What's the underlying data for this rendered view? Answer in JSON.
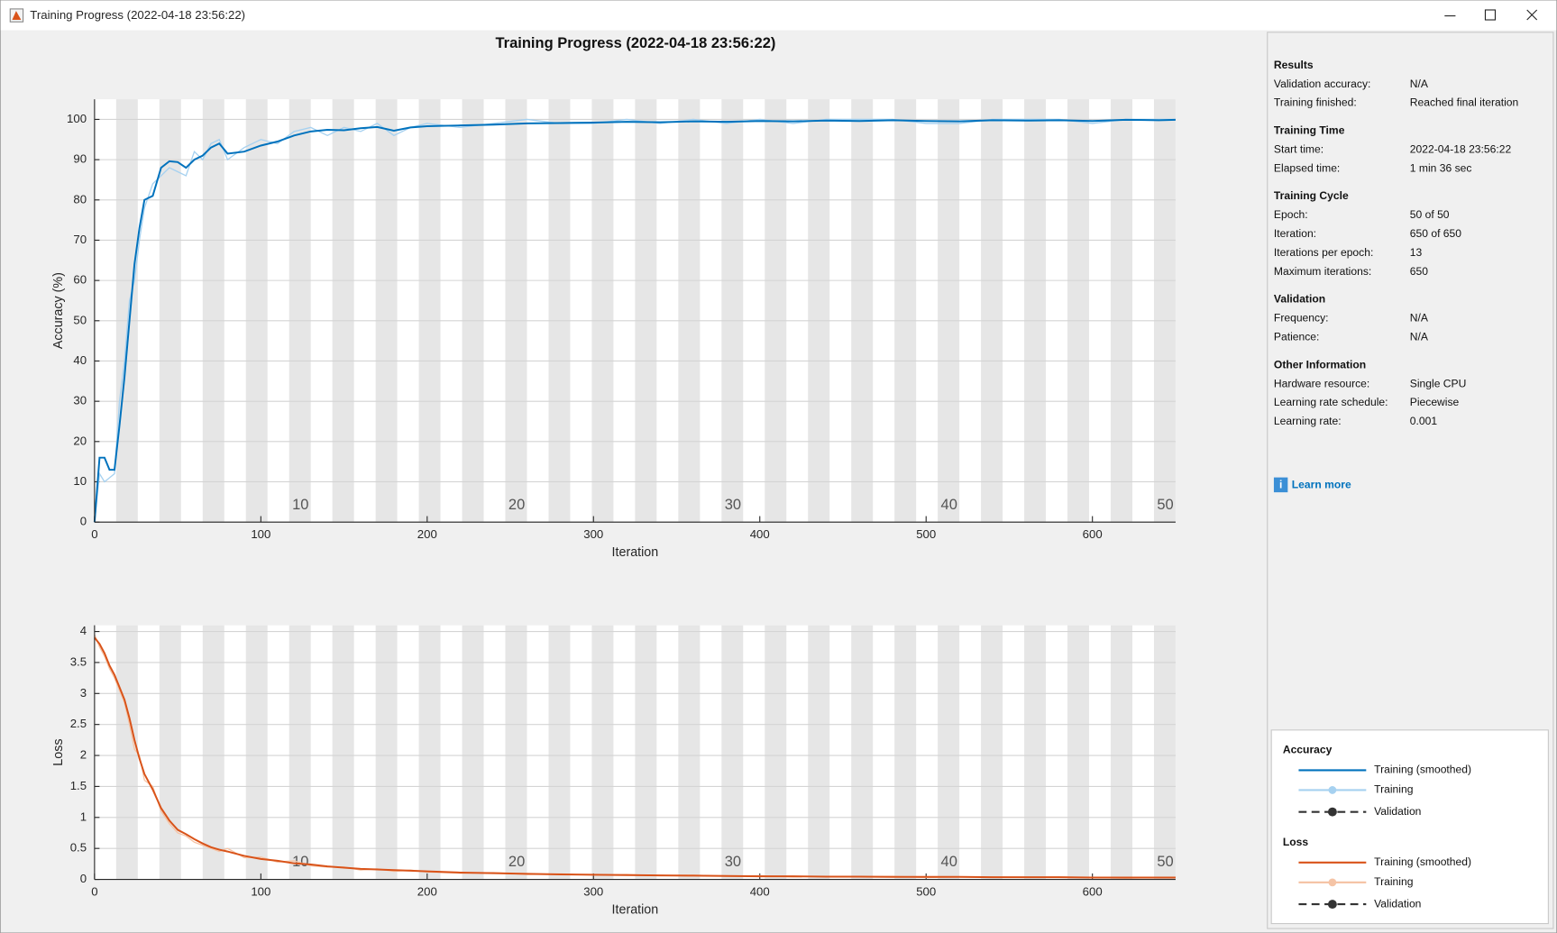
{
  "window": {
    "title": "Training Progress (2022-04-18 23:56:22)"
  },
  "figure_title": "Training Progress (2022-04-18 23:56:22)",
  "chart_data": [
    {
      "type": "line",
      "y_label": "Accuracy (%)",
      "x_label": "Iteration",
      "x": [
        0,
        3,
        6,
        9,
        12,
        15,
        18,
        21,
        24,
        27,
        30,
        35,
        40,
        45,
        50,
        55,
        60,
        65,
        70,
        75,
        80,
        90,
        100,
        110,
        120,
        130,
        140,
        150,
        160,
        170,
        180,
        190,
        200,
        220,
        240,
        260,
        280,
        300,
        320,
        340,
        360,
        380,
        400,
        420,
        440,
        460,
        480,
        500,
        520,
        540,
        560,
        580,
        600,
        620,
        640,
        650
      ],
      "xlim": [
        0,
        650
      ],
      "xticks": [
        0,
        100,
        200,
        300,
        400,
        500,
        600
      ],
      "ylim": [
        0,
        105
      ],
      "yticks": [
        0,
        10,
        20,
        30,
        40,
        50,
        60,
        70,
        80,
        90,
        100
      ],
      "grid": true,
      "epoch_ticks": [
        {
          "value": 130,
          "label": "10"
        },
        {
          "value": 260,
          "label": "20"
        },
        {
          "value": 390,
          "label": "30"
        },
        {
          "value": 520,
          "label": "40"
        },
        {
          "value": 650,
          "label": "50"
        }
      ],
      "series": [
        {
          "name": "Training (smoothed)",
          "color": "#0072bd",
          "values": [
            0,
            16,
            16,
            13,
            13,
            24,
            36,
            50,
            64,
            73,
            80,
            81,
            88,
            89.6,
            89.4,
            88,
            90,
            91,
            93,
            94,
            91.5,
            92,
            93.5,
            94.5,
            96,
            97,
            97.4,
            97.3,
            97.8,
            98.1,
            97.2,
            98,
            98.3,
            98.5,
            98.7,
            99,
            99.1,
            99.2,
            99.4,
            99.3,
            99.5,
            99.4,
            99.6,
            99.5,
            99.7,
            99.6,
            99.8,
            99.6,
            99.5,
            99.8,
            99.7,
            99.8,
            99.6,
            99.9,
            99.8,
            99.9
          ]
        },
        {
          "name": "Training",
          "color": "#a6d1f0",
          "values": [
            0,
            12,
            10,
            11,
            12,
            30,
            40,
            55,
            60,
            70,
            78,
            84,
            86,
            88,
            87,
            86,
            92,
            90,
            94,
            95,
            90,
            93,
            95,
            94,
            97,
            98,
            96,
            98,
            97,
            99,
            96,
            98,
            99,
            98,
            99,
            100,
            99,
            99,
            100,
            99,
            100,
            99,
            100,
            99,
            100,
            100,
            100,
            99,
            99,
            100,
            100,
            100,
            99,
            100,
            100,
            100
          ]
        }
      ]
    },
    {
      "type": "line",
      "y_label": "Loss",
      "x_label": "Iteration",
      "x": [
        0,
        3,
        6,
        9,
        12,
        15,
        18,
        21,
        24,
        27,
        30,
        35,
        40,
        45,
        50,
        55,
        60,
        65,
        70,
        75,
        80,
        90,
        100,
        110,
        120,
        130,
        140,
        150,
        160,
        170,
        180,
        190,
        200,
        220,
        240,
        260,
        280,
        300,
        320,
        340,
        360,
        380,
        400,
        420,
        440,
        460,
        480,
        500,
        520,
        540,
        560,
        580,
        600,
        620,
        640,
        650
      ],
      "xlim": [
        0,
        650
      ],
      "xticks": [
        0,
        100,
        200,
        300,
        400,
        500,
        600
      ],
      "ylim": [
        0,
        4.1
      ],
      "yticks": [
        0,
        0.5,
        1,
        1.5,
        2,
        2.5,
        3,
        3.5,
        4
      ],
      "grid": true,
      "epoch_ticks": [
        {
          "value": 130,
          "label": "10"
        },
        {
          "value": 260,
          "label": "20"
        },
        {
          "value": 390,
          "label": "30"
        },
        {
          "value": 520,
          "label": "40"
        },
        {
          "value": 650,
          "label": "50"
        }
      ],
      "series": [
        {
          "name": "Training (smoothed)",
          "color": "#d95319",
          "values": [
            3.9,
            3.8,
            3.65,
            3.45,
            3.3,
            3.1,
            2.9,
            2.6,
            2.25,
            1.95,
            1.7,
            1.45,
            1.15,
            0.95,
            0.8,
            0.73,
            0.65,
            0.58,
            0.52,
            0.48,
            0.45,
            0.38,
            0.33,
            0.3,
            0.26,
            0.24,
            0.21,
            0.19,
            0.17,
            0.16,
            0.15,
            0.14,
            0.13,
            0.11,
            0.1,
            0.09,
            0.08,
            0.075,
            0.07,
            0.065,
            0.06,
            0.055,
            0.05,
            0.05,
            0.045,
            0.045,
            0.04,
            0.04,
            0.04,
            0.035,
            0.035,
            0.035,
            0.03,
            0.03,
            0.03,
            0.03
          ]
        },
        {
          "name": "Training",
          "color": "#f5c4a6",
          "values": [
            3.95,
            3.75,
            3.6,
            3.4,
            3.25,
            3.05,
            2.85,
            2.5,
            2.1,
            2.0,
            1.6,
            1.5,
            1.1,
            0.9,
            0.75,
            0.7,
            0.6,
            0.55,
            0.5,
            0.45,
            0.5,
            0.35,
            0.36,
            0.28,
            0.3,
            0.22,
            0.2,
            0.2,
            0.15,
            0.17,
            0.13,
            0.15,
            0.12,
            0.1,
            0.11,
            0.08,
            0.09,
            0.07,
            0.08,
            0.06,
            0.07,
            0.05,
            0.06,
            0.04,
            0.05,
            0.04,
            0.05,
            0.03,
            0.04,
            0.04,
            0.03,
            0.04,
            0.03,
            0.02,
            0.03,
            0.03
          ]
        }
      ]
    }
  ],
  "panel": {
    "sections": [
      {
        "title": "Results",
        "rows": [
          [
            "Validation accuracy:",
            "N/A"
          ],
          [
            "Training finished:",
            "Reached final iteration"
          ]
        ]
      },
      {
        "title": "Training Time",
        "rows": [
          [
            "Start time:",
            "2022-04-18 23:56:22"
          ],
          [
            "Elapsed time:",
            "1 min 36 sec"
          ]
        ]
      },
      {
        "title": "Training Cycle",
        "rows": [
          [
            "Epoch:",
            "50 of 50"
          ],
          [
            "Iteration:",
            "650 of 650"
          ],
          [
            "Iterations per epoch:",
            "13"
          ],
          [
            "Maximum iterations:",
            "650"
          ]
        ]
      },
      {
        "title": "Validation",
        "rows": [
          [
            "Frequency:",
            "N/A"
          ],
          [
            "Patience:",
            "N/A"
          ]
        ]
      },
      {
        "title": "Other Information",
        "rows": [
          [
            "Hardware resource:",
            "Single CPU"
          ],
          [
            "Learning rate schedule:",
            "Piecewise"
          ],
          [
            "Learning rate:",
            "0.001"
          ]
        ]
      }
    ],
    "link": "Learn more"
  },
  "legend": {
    "sections": [
      {
        "title": "Accuracy",
        "validation": "Validation"
      },
      {
        "title": "Loss",
        "validation": "Validation"
      }
    ]
  }
}
